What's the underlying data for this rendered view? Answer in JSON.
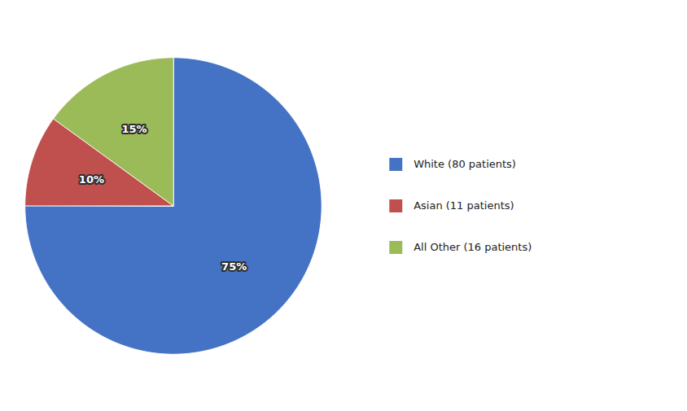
{
  "chart_data": {
    "type": "pie",
    "categories": [
      "White (80 patients)",
      "Asian (11 patients)",
      "All Other (16 patients)"
    ],
    "values": [
      75,
      10,
      15
    ],
    "value_labels": [
      "75%",
      "10%",
      "15%"
    ],
    "colors": [
      "#4472C4",
      "#C0504D",
      "#9BBB59"
    ],
    "data_labels": true,
    "legend": "right"
  }
}
